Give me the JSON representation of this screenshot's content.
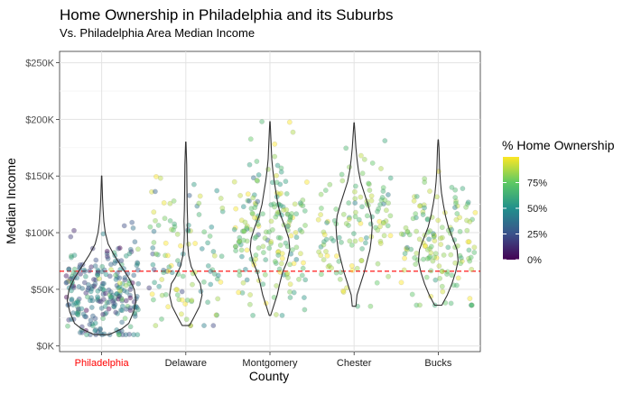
{
  "chart_data": {
    "type": "violin-jitter",
    "title": "Home Ownership in Philadelphia and its Suburbs",
    "subtitle": "Vs. Philadelphia Area Median Income",
    "xlabel": "County",
    "ylabel": "Median Income",
    "categories": [
      "Philadelphia",
      "Delaware",
      "Montgomery",
      "Chester",
      "Bucks"
    ],
    "highlight_category": "Philadelphia",
    "highlight_color": "#ff0000",
    "ylim": [
      -5000,
      260000
    ],
    "yticks": [
      0,
      50000,
      100000,
      150000,
      200000,
      250000
    ],
    "ytick_labels": [
      "$0K",
      "$50K",
      "$100K",
      "$150K",
      "$200K",
      "$250K"
    ],
    "reference_line": {
      "value": 66000,
      "color": "#ff0000",
      "style": "dashed"
    },
    "grid": true,
    "legend": {
      "title": "% Home Ownership",
      "position": "right",
      "ticks": [
        0,
        25,
        50,
        75
      ],
      "tick_labels": [
        "0%",
        "25%",
        "50%",
        "75%"
      ],
      "range": [
        0,
        100
      ],
      "colormap": "viridis",
      "colors": [
        "#440154",
        "#3b528b",
        "#21908c",
        "#5dc963",
        "#fde725"
      ]
    },
    "violins": [
      {
        "name": "Philadelphia",
        "min": 10000,
        "max": 150000,
        "profile": [
          [
            10000,
            0.2
          ],
          [
            15000,
            0.55
          ],
          [
            20000,
            0.75
          ],
          [
            30000,
            0.88
          ],
          [
            40000,
            0.95
          ],
          [
            50000,
            0.9
          ],
          [
            60000,
            0.75
          ],
          [
            70000,
            0.55
          ],
          [
            80000,
            0.35
          ],
          [
            90000,
            0.18
          ],
          [
            100000,
            0.1
          ],
          [
            110000,
            0.06
          ],
          [
            120000,
            0.04
          ],
          [
            130000,
            0.025
          ],
          [
            140000,
            0.015
          ],
          [
            150000,
            0.005
          ]
        ]
      },
      {
        "name": "Delaware",
        "min": 18000,
        "max": 180000,
        "profile": [
          [
            18000,
            0.1
          ],
          [
            25000,
            0.22
          ],
          [
            35000,
            0.38
          ],
          [
            45000,
            0.45
          ],
          [
            55000,
            0.4
          ],
          [
            60000,
            0.3
          ],
          [
            70000,
            0.15
          ],
          [
            80000,
            0.08
          ],
          [
            90000,
            0.05
          ],
          [
            100000,
            0.04
          ],
          [
            110000,
            0.05
          ],
          [
            120000,
            0.04
          ],
          [
            130000,
            0.035
          ],
          [
            145000,
            0.03
          ],
          [
            160000,
            0.025
          ],
          [
            170000,
            0.015
          ],
          [
            180000,
            0.004
          ]
        ]
      },
      {
        "name": "Montgomery",
        "min": 27000,
        "max": 198000,
        "profile": [
          [
            27000,
            0.02
          ],
          [
            35000,
            0.1
          ],
          [
            45000,
            0.2
          ],
          [
            55000,
            0.27
          ],
          [
            65000,
            0.35
          ],
          [
            75000,
            0.48
          ],
          [
            85000,
            0.55
          ],
          [
            95000,
            0.52
          ],
          [
            105000,
            0.42
          ],
          [
            115000,
            0.3
          ],
          [
            125000,
            0.22
          ],
          [
            135000,
            0.17
          ],
          [
            145000,
            0.12
          ],
          [
            155000,
            0.08
          ],
          [
            165000,
            0.05
          ],
          [
            180000,
            0.03
          ],
          [
            198000,
            0.005
          ]
        ]
      },
      {
        "name": "Chester",
        "min": 35000,
        "max": 197000,
        "profile": [
          [
            35000,
            0.05
          ],
          [
            45000,
            0.08
          ],
          [
            55000,
            0.18
          ],
          [
            65000,
            0.28
          ],
          [
            75000,
            0.36
          ],
          [
            85000,
            0.44
          ],
          [
            95000,
            0.48
          ],
          [
            105000,
            0.5
          ],
          [
            115000,
            0.47
          ],
          [
            125000,
            0.38
          ],
          [
            135000,
            0.28
          ],
          [
            145000,
            0.18
          ],
          [
            155000,
            0.12
          ],
          [
            165000,
            0.08
          ],
          [
            175000,
            0.05
          ],
          [
            185000,
            0.03
          ],
          [
            197000,
            0.005
          ]
        ]
      },
      {
        "name": "Bucks",
        "min": 36000,
        "max": 182000,
        "profile": [
          [
            36000,
            0.1
          ],
          [
            45000,
            0.25
          ],
          [
            55000,
            0.38
          ],
          [
            65000,
            0.48
          ],
          [
            75000,
            0.55
          ],
          [
            85000,
            0.52
          ],
          [
            95000,
            0.4
          ],
          [
            105000,
            0.28
          ],
          [
            115000,
            0.2
          ],
          [
            125000,
            0.14
          ],
          [
            135000,
            0.09
          ],
          [
            145000,
            0.06
          ],
          [
            155000,
            0.04
          ],
          [
            165000,
            0.03
          ],
          [
            175000,
            0.02
          ],
          [
            182000,
            0.005
          ]
        ]
      }
    ],
    "points": [
      {
        "category": "Philadelphia",
        "n": 260,
        "income_mean": 48000,
        "income_sd": 22000,
        "income_min": 10000,
        "income_max": 150000,
        "ownership_mean": 42,
        "ownership_sd": 20
      },
      {
        "category": "Delaware",
        "n": 110,
        "income_mean": 80000,
        "income_sd": 35000,
        "income_min": 18000,
        "income_max": 180000,
        "ownership_mean": 68,
        "ownership_sd": 22
      },
      {
        "category": "Montgomery",
        "n": 190,
        "income_mean": 98000,
        "income_sd": 32000,
        "income_min": 27000,
        "income_max": 198000,
        "ownership_mean": 75,
        "ownership_sd": 18
      },
      {
        "category": "Chester",
        "n": 120,
        "income_mean": 102000,
        "income_sd": 34000,
        "income_min": 35000,
        "income_max": 197000,
        "ownership_mean": 80,
        "ownership_sd": 14
      },
      {
        "category": "Bucks",
        "n": 140,
        "income_mean": 92000,
        "income_sd": 30000,
        "income_min": 36000,
        "income_max": 182000,
        "ownership_mean": 80,
        "ownership_sd": 14
      }
    ]
  }
}
